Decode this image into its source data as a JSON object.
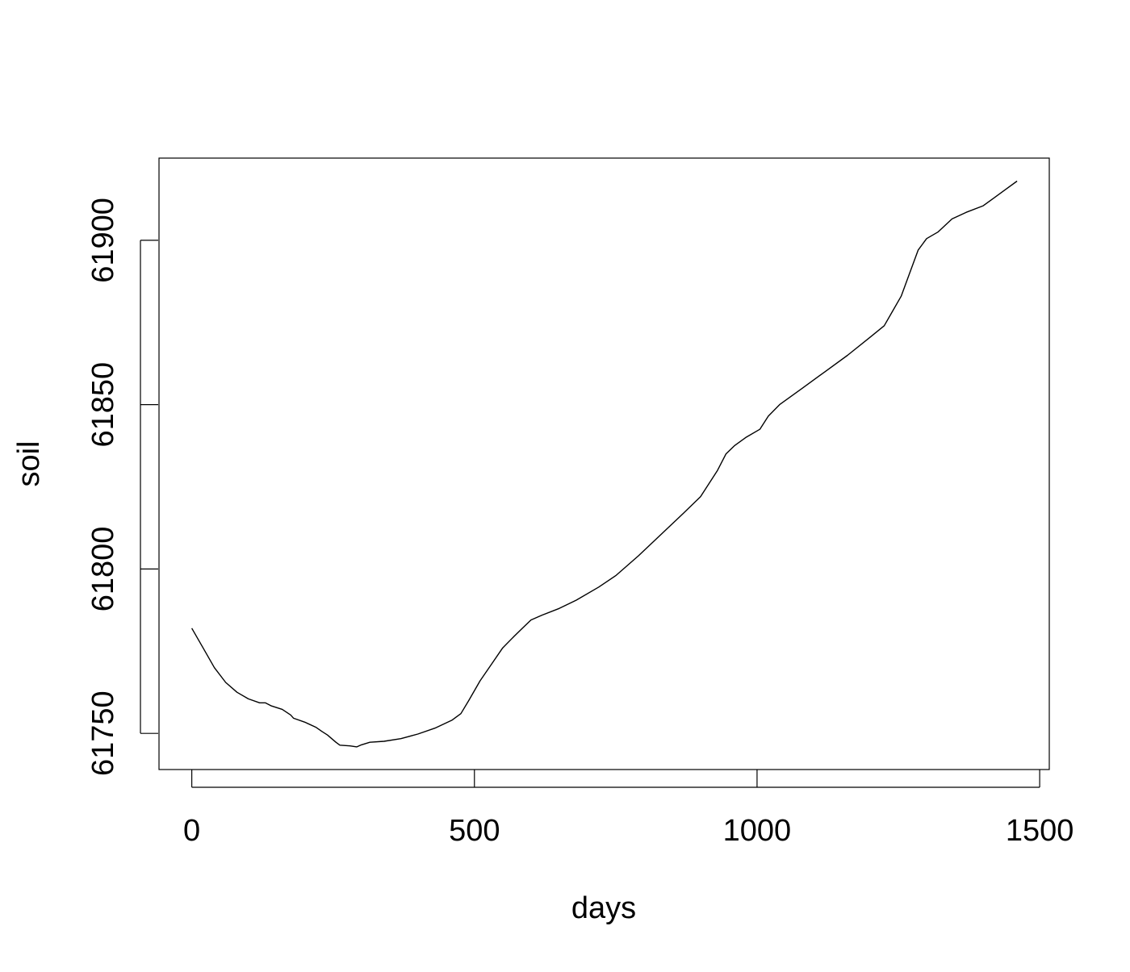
{
  "chart_data": {
    "type": "line",
    "title": "",
    "xlabel": "days",
    "ylabel": "soil",
    "xlim": [
      -58,
      1517
    ],
    "ylim": [
      61739,
      61925
    ],
    "x_ticks": [
      0,
      500,
      1000,
      1500
    ],
    "y_ticks": [
      61750,
      61800,
      61850,
      61900
    ],
    "x_tick_labels": [
      "0",
      "500",
      "1000",
      "1500"
    ],
    "y_tick_labels": [
      "61750",
      "61800",
      "61850",
      "61900"
    ],
    "grid": false,
    "legend": "none",
    "series": [
      {
        "color": "#000000",
        "points": [
          [
            0,
            61782
          ],
          [
            20,
            61776
          ],
          [
            40,
            61770
          ],
          [
            60,
            61765.5
          ],
          [
            80,
            61762.5
          ],
          [
            100,
            61760.5
          ],
          [
            120,
            61759.3
          ],
          [
            130,
            61759.3
          ],
          [
            140,
            61758.4
          ],
          [
            160,
            61757.3
          ],
          [
            175,
            61755.6
          ],
          [
            180,
            61754.6
          ],
          [
            200,
            61753.4
          ],
          [
            220,
            61751.8
          ],
          [
            230,
            61750.6
          ],
          [
            240,
            61749.5
          ],
          [
            255,
            61747.3
          ],
          [
            262,
            61746.4
          ],
          [
            280,
            61746.2
          ],
          [
            292,
            61745.9
          ],
          [
            300,
            61746.5
          ],
          [
            315,
            61747.3
          ],
          [
            340,
            61747.6
          ],
          [
            370,
            61748.4
          ],
          [
            400,
            61749.8
          ],
          [
            430,
            61751.6
          ],
          [
            460,
            61754
          ],
          [
            476,
            61756
          ],
          [
            490,
            61760
          ],
          [
            510,
            61766
          ],
          [
            530,
            61771
          ],
          [
            550,
            61776
          ],
          [
            570,
            61779.5
          ],
          [
            585,
            61782
          ],
          [
            600,
            61784.5
          ],
          [
            620,
            61786
          ],
          [
            650,
            61788
          ],
          [
            680,
            61790.5
          ],
          [
            720,
            61794.5
          ],
          [
            750,
            61798
          ],
          [
            790,
            61804
          ],
          [
            830,
            61810.5
          ],
          [
            870,
            61817
          ],
          [
            900,
            61822
          ],
          [
            915,
            61826
          ],
          [
            930,
            61830
          ],
          [
            945,
            61835
          ],
          [
            960,
            61837.5
          ],
          [
            980,
            61840
          ],
          [
            1005,
            61842.5
          ],
          [
            1020,
            61846.5
          ],
          [
            1040,
            61850
          ],
          [
            1080,
            61855
          ],
          [
            1120,
            61860
          ],
          [
            1160,
            61865
          ],
          [
            1200,
            61870.5
          ],
          [
            1225,
            61874
          ],
          [
            1240,
            61878.5
          ],
          [
            1255,
            61883
          ],
          [
            1270,
            61890
          ],
          [
            1285,
            61897
          ],
          [
            1300,
            61900.5
          ],
          [
            1320,
            61902.5
          ],
          [
            1345,
            61906.5
          ],
          [
            1370,
            61908.5
          ],
          [
            1400,
            61910.5
          ],
          [
            1420,
            61913
          ],
          [
            1440,
            61915.5
          ],
          [
            1460,
            61918
          ]
        ]
      }
    ]
  }
}
